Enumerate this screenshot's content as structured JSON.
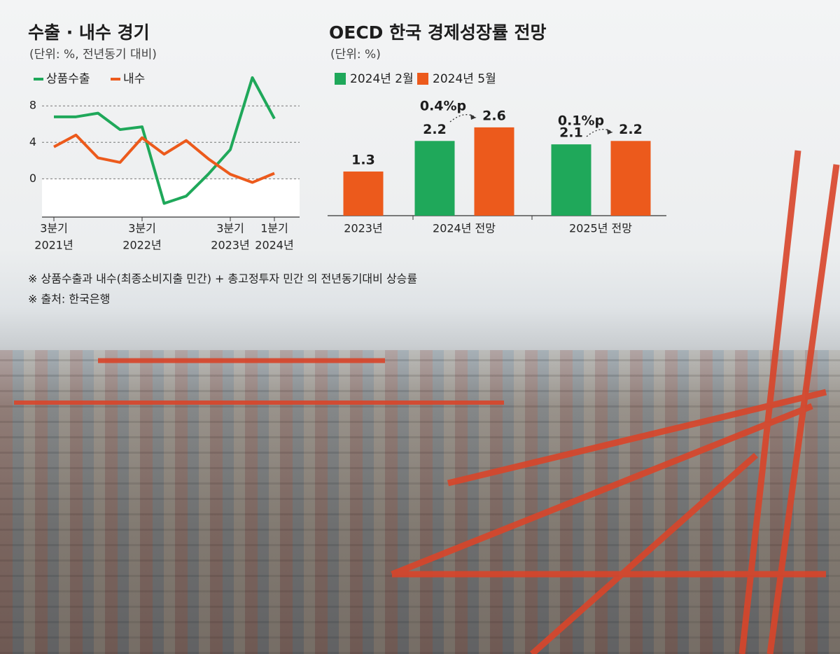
{
  "chart_data": [
    {
      "type": "line",
      "title": "수출 · 내수 경기",
      "subtitle": "(단위: %, 전년동기 대비)",
      "categories": [
        [
          "3분기",
          "2021년"
        ],
        null,
        null,
        null,
        [
          "3분기",
          "2022년"
        ],
        null,
        null,
        null,
        [
          "3분기",
          "2023년"
        ],
        null,
        [
          "1분기",
          "2024년"
        ]
      ],
      "series": [
        {
          "name": "상품수출",
          "color": "#1fa85a",
          "values": [
            6.8,
            6.8,
            7.2,
            5.4,
            5.7,
            -2.7,
            -1.9,
            0.5,
            3.2,
            11.1,
            6.6
          ]
        },
        {
          "name": "내수",
          "color": "#ec5a1c",
          "values": [
            3.5,
            4.8,
            2.3,
            1.8,
            4.5,
            2.7,
            4.2,
            2.2,
            0.5,
            -0.4,
            0.6
          ]
        }
      ],
      "ylim": [
        -4.2,
        9.4
      ],
      "yticks": [
        0,
        4,
        8
      ],
      "grid": true
    },
    {
      "type": "bar",
      "title": "OECD 한국 경제성장률 전망",
      "subtitle": "(단위: %)",
      "categories": [
        "2023년",
        "2024년 전망",
        "2025년 전망"
      ],
      "series": [
        {
          "name": "2024년 2월",
          "color": "#1fa85a",
          "values": [
            null,
            2.2,
            2.1
          ]
        },
        {
          "name": "2024년 5월",
          "color": "#ec5a1c",
          "values": [
            1.3,
            2.6,
            2.2
          ]
        }
      ],
      "annotations": [
        "0.4%p",
        "0.1%p"
      ]
    }
  ],
  "notes": [
    "※ 상품수출과 내수(최종소비지출 민간) + 총고정투자 민간 의 전년동기대비 상승률",
    "※ 출처: 한국은행"
  ]
}
